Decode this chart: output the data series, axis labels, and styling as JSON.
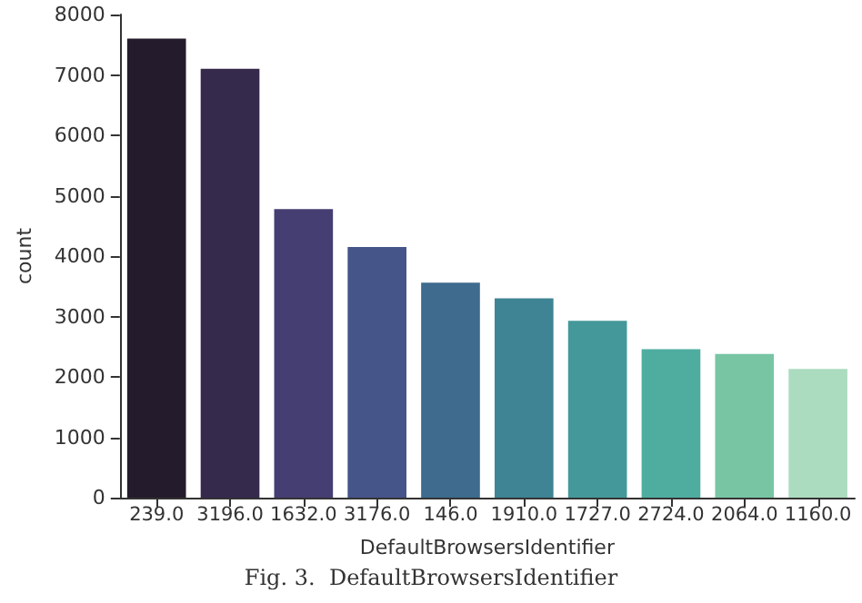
{
  "chart_data": {
    "type": "bar",
    "xlabel": "DefaultBrowsersIdentifier",
    "ylabel": "count",
    "categories": [
      "239.0",
      "3196.0",
      "1632.0",
      "3176.0",
      "146.0",
      "1910.0",
      "1727.0",
      "2724.0",
      "2064.0",
      "1160.0"
    ],
    "values": [
      7600,
      7100,
      4780,
      4150,
      3560,
      3300,
      2930,
      2460,
      2380,
      2130
    ],
    "colors": [
      "#241b2c",
      "#35294c",
      "#453e72",
      "#455489",
      "#3e6b8e",
      "#3e8494",
      "#44989a",
      "#4fada0",
      "#78c5a4",
      "#acdcbf"
    ],
    "ylim": [
      0,
      8000
    ],
    "yticks": [
      0,
      1000,
      2000,
      3000,
      4000,
      5000,
      6000,
      7000,
      8000
    ],
    "annotations": [
      "Fig. 3.  DefaultBrowsersIdentifier"
    ]
  }
}
